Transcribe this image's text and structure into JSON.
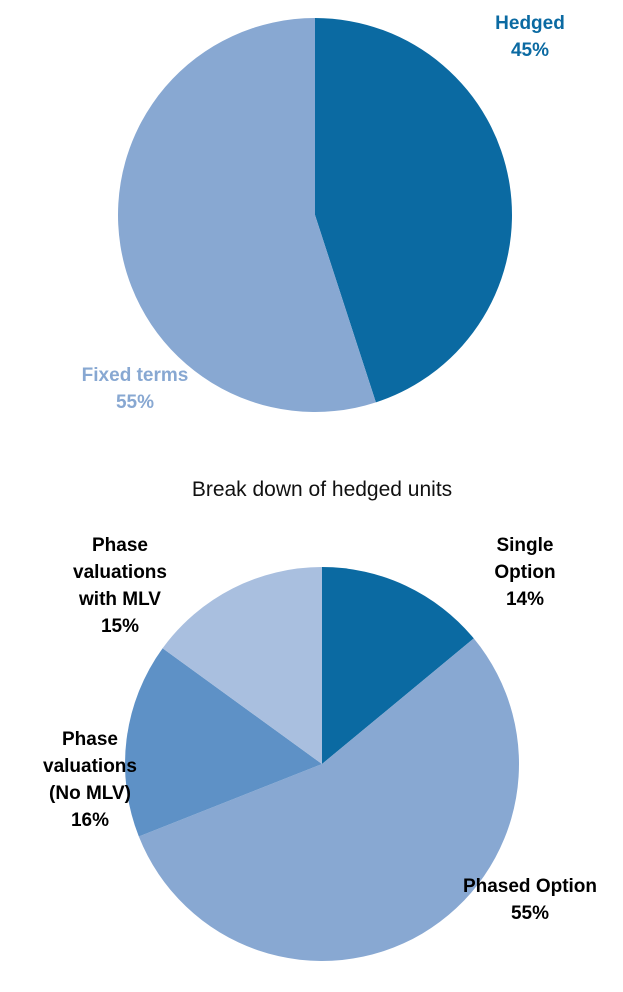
{
  "chart_data": [
    {
      "type": "pie",
      "categories": [
        "Hedged",
        "Fixed terms"
      ],
      "values": [
        45,
        55
      ],
      "value_labels": [
        "45%",
        "55%"
      ],
      "colors": [
        "#0b6aa2",
        "#88a8d2"
      ]
    },
    {
      "type": "pie",
      "title": "Break down of hedged units",
      "categories": [
        "Single Option",
        "Phased Option",
        "Phase valuations (No MLV)",
        "Phase valuations with MLV"
      ],
      "values": [
        14,
        55,
        16,
        15
      ],
      "value_labels": [
        "14%",
        "55%",
        "16%",
        "15%"
      ],
      "colors": [
        "#0b6aa2",
        "#88a8d2",
        "#5e91c6",
        "#a9bfdf"
      ]
    }
  ]
}
